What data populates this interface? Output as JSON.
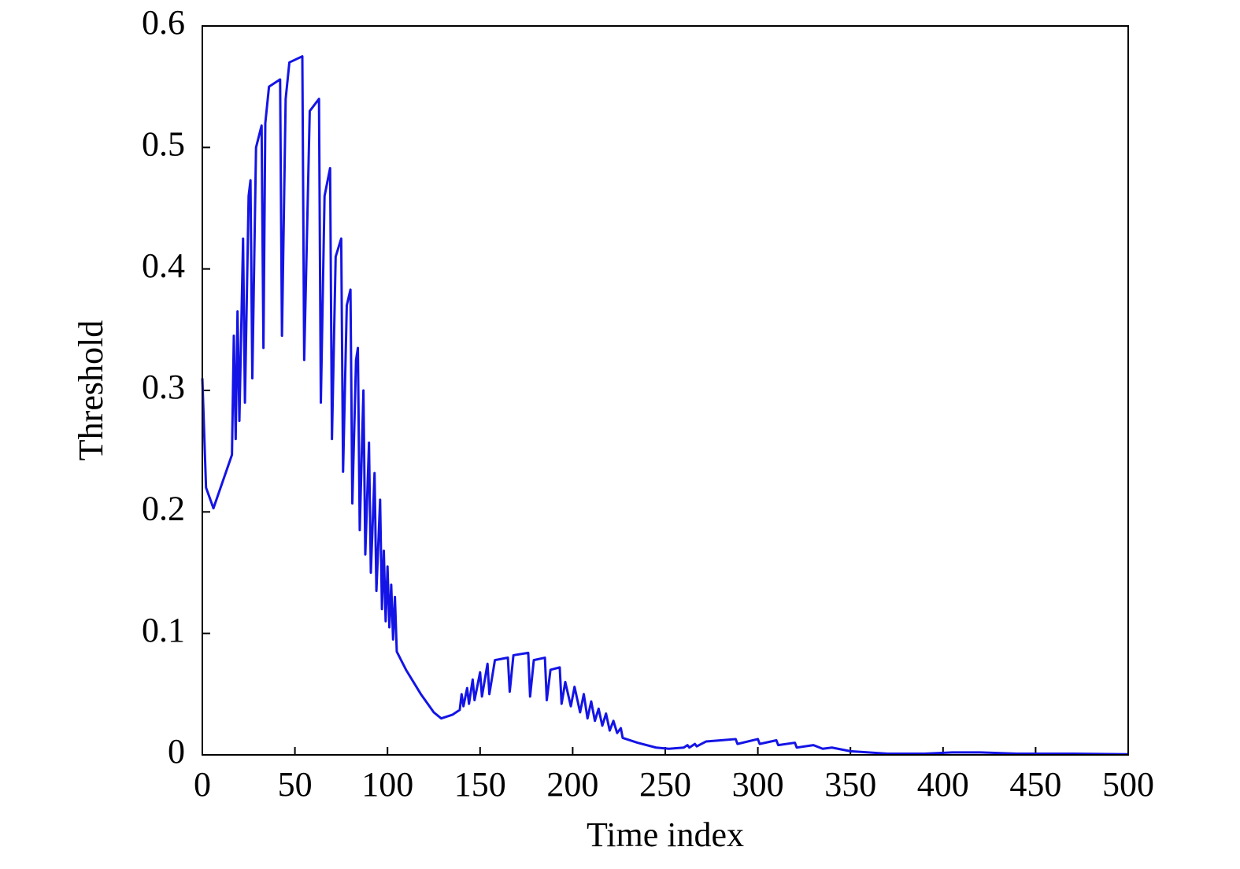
{
  "chart_data": {
    "type": "line",
    "xlabel": "Time index",
    "ylabel": "Threshold",
    "x": [
      0,
      2,
      6,
      16,
      17,
      18,
      19,
      20,
      22,
      23,
      25,
      26,
      27,
      29,
      32,
      33,
      34,
      36,
      42,
      43,
      45,
      47,
      54,
      55,
      58,
      63,
      64,
      66,
      69,
      70,
      72,
      75,
      76,
      78,
      80,
      81,
      83,
      84,
      85,
      87,
      88,
      90,
      91,
      93,
      94,
      96,
      97,
      98,
      99,
      100,
      101,
      102,
      103,
      104,
      105,
      110,
      118,
      125,
      129,
      135,
      139,
      140,
      141,
      143,
      144,
      146,
      147,
      150,
      151,
      154,
      155,
      158,
      165,
      166,
      168,
      176,
      177,
      179,
      185,
      186,
      188,
      193,
      194,
      196,
      199,
      201,
      204,
      206,
      208,
      210,
      212,
      214,
      216,
      218,
      220,
      222,
      224,
      226,
      227,
      235,
      245,
      252,
      260,
      262,
      263,
      266,
      267,
      272,
      280,
      288,
      289,
      300,
      301,
      310,
      311,
      320,
      321,
      330,
      335,
      340,
      350,
      370,
      390,
      405,
      420,
      440,
      470,
      500
    ],
    "series": [
      {
        "name": "Threshold",
        "color": "#1414e6",
        "values": [
          0.31,
          0.22,
          0.203,
          0.247,
          0.345,
          0.26,
          0.365,
          0.275,
          0.425,
          0.29,
          0.46,
          0.473,
          0.31,
          0.5,
          0.518,
          0.335,
          0.52,
          0.55,
          0.556,
          0.345,
          0.54,
          0.57,
          0.575,
          0.325,
          0.53,
          0.54,
          0.29,
          0.46,
          0.483,
          0.26,
          0.41,
          0.425,
          0.233,
          0.37,
          0.383,
          0.207,
          0.325,
          0.335,
          0.185,
          0.3,
          0.165,
          0.257,
          0.15,
          0.232,
          0.135,
          0.21,
          0.12,
          0.168,
          0.11,
          0.155,
          0.105,
          0.14,
          0.095,
          0.13,
          0.085,
          0.07,
          0.05,
          0.035,
          0.03,
          0.033,
          0.037,
          0.05,
          0.04,
          0.055,
          0.042,
          0.062,
          0.045,
          0.068,
          0.048,
          0.075,
          0.05,
          0.078,
          0.08,
          0.052,
          0.082,
          0.084,
          0.048,
          0.078,
          0.08,
          0.045,
          0.07,
          0.072,
          0.042,
          0.06,
          0.04,
          0.056,
          0.035,
          0.05,
          0.03,
          0.044,
          0.028,
          0.038,
          0.024,
          0.034,
          0.02,
          0.028,
          0.018,
          0.022,
          0.014,
          0.01,
          0.006,
          0.005,
          0.006,
          0.008,
          0.006,
          0.009,
          0.007,
          0.011,
          0.012,
          0.013,
          0.009,
          0.013,
          0.009,
          0.012,
          0.008,
          0.01,
          0.006,
          0.008,
          0.005,
          0.006,
          0.003,
          0.001,
          0.001,
          0.002,
          0.002,
          0.001,
          0.001,
          0.0005
        ]
      }
    ],
    "xlim": [
      0,
      500
    ],
    "xticks": [
      0,
      50,
      100,
      150,
      200,
      250,
      300,
      350,
      400,
      450,
      500
    ],
    "ylim": [
      0,
      0.6
    ],
    "yticks": [
      0,
      0.1,
      0.2,
      0.3,
      0.4,
      0.5,
      0.6
    ]
  }
}
